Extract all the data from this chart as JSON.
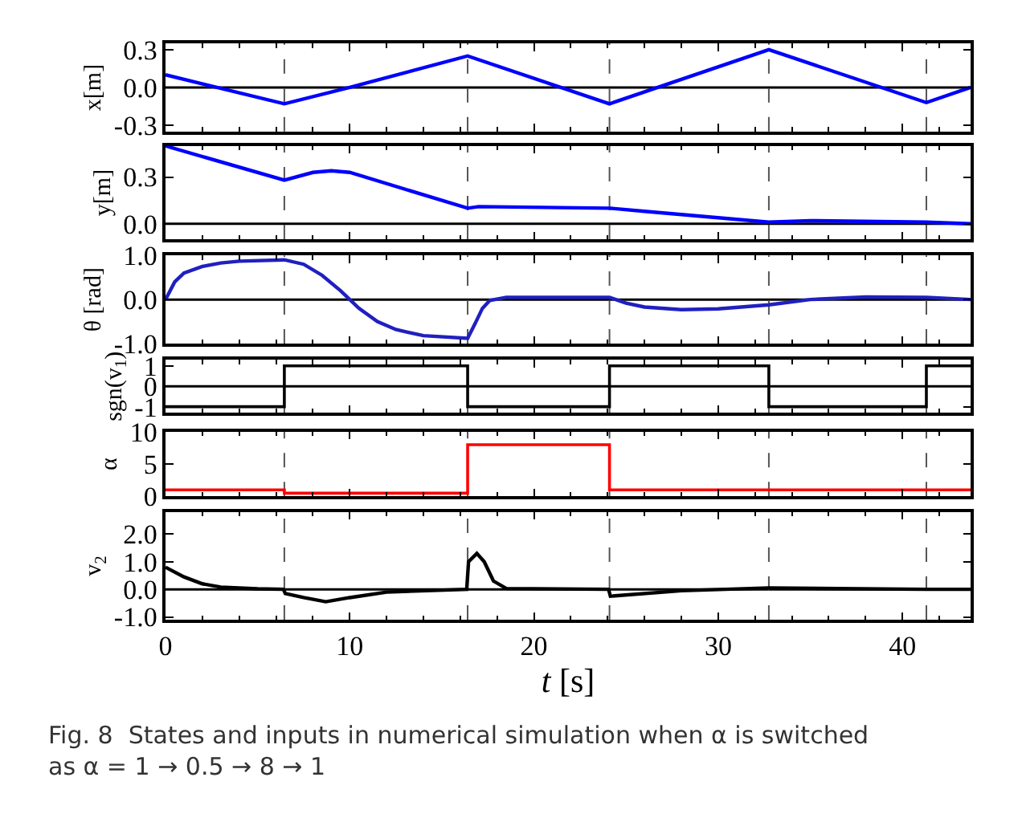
{
  "chart_data": [
    {
      "type": "line",
      "ylabel": "x[m]",
      "xlim": [
        0,
        43.7
      ],
      "xticks": [
        0,
        10,
        20,
        30,
        40
      ],
      "ylim": [
        -0.35,
        0.35
      ],
      "yticks": [
        -0.3,
        {
          "value": 0,
          "label": "0.0"
        },
        0.3
      ],
      "tick_labels": "y",
      "marker": "none",
      "x": [
        0,
        6.45,
        10,
        16.4,
        24.1,
        32.75,
        41.3,
        43.7
      ],
      "series": [
        {
          "color": "#0000ff",
          "values": [
            0.1,
            -0.13,
            0.0,
            0.25,
            -0.13,
            0.3,
            -0.12,
            0.0
          ]
        }
      ],
      "ref_lines": [
        {
          "axis": "y",
          "value": 0,
          "color": "#000000",
          "line_style": "solid"
        },
        {
          "axis": "x",
          "value": 6.45,
          "color": "#555555",
          "line_style": "dashed"
        },
        {
          "axis": "x",
          "value": 16.4,
          "color": "#555555",
          "line_style": "dashed"
        },
        {
          "axis": "x",
          "value": 24.1,
          "color": "#555555",
          "line_style": "dashed"
        },
        {
          "axis": "x",
          "value": 32.75,
          "color": "#555555",
          "line_style": "dashed"
        },
        {
          "axis": "x",
          "value": 41.3,
          "color": "#555555",
          "line_style": "dashed"
        }
      ]
    },
    {
      "type": "line",
      "ylabel": "y[m]",
      "xlim": [
        0,
        43.7
      ],
      "xticks": [
        0,
        10,
        20,
        30,
        40
      ],
      "ylim": [
        -0.1,
        0.5
      ],
      "yticks": [
        {
          "value": 0,
          "label": "0.0"
        },
        0.3
      ],
      "tick_labels": "y",
      "marker": "none",
      "x": [
        0,
        6.45,
        8,
        9,
        10,
        16.4,
        17,
        24.1,
        26,
        32.75,
        35,
        41.3,
        43.7
      ],
      "series": [
        {
          "color": "#0000ff",
          "values": [
            0.5,
            0.28,
            0.33,
            0.34,
            0.33,
            0.1,
            0.11,
            0.1,
            0.08,
            0.01,
            0.02,
            0.01,
            0.0
          ]
        }
      ],
      "ref_lines": [
        {
          "axis": "y",
          "value": 0,
          "color": "#000000",
          "line_style": "solid"
        },
        {
          "axis": "x",
          "value": 6.45,
          "color": "#555555",
          "line_style": "dashed"
        },
        {
          "axis": "x",
          "value": 16.4,
          "color": "#555555",
          "line_style": "dashed"
        },
        {
          "axis": "x",
          "value": 24.1,
          "color": "#555555",
          "line_style": "dashed"
        },
        {
          "axis": "x",
          "value": 32.75,
          "color": "#555555",
          "line_style": "dashed"
        },
        {
          "axis": "x",
          "value": 41.3,
          "color": "#555555",
          "line_style": "dashed"
        }
      ]
    },
    {
      "type": "line",
      "ylabel": "θ [rad]",
      "xlim": [
        0,
        43.7
      ],
      "xticks": [
        0,
        10,
        20,
        30,
        40
      ],
      "ylim": [
        -1.0,
        1.0
      ],
      "yticks": [
        {
          "value": -1,
          "label": "-1.0"
        },
        {
          "value": 0,
          "label": "0.0"
        },
        {
          "value": 1,
          "label": "1.0"
        }
      ],
      "tick_labels": "y",
      "marker": "none",
      "x": [
        0,
        0.5,
        1,
        2,
        3,
        4,
        6.45,
        7.5,
        8.5,
        9.5,
        10.5,
        11.5,
        12.5,
        14,
        16.4,
        16.8,
        17.2,
        17.6,
        18.5,
        24.1,
        25,
        26,
        28,
        30,
        32.75,
        35,
        38,
        41.3,
        43.7
      ],
      "series": [
        {
          "color": "#2020c0",
          "values": [
            0.0,
            0.4,
            0.6,
            0.75,
            0.83,
            0.87,
            0.9,
            0.8,
            0.55,
            0.2,
            -0.2,
            -0.5,
            -0.68,
            -0.82,
            -0.88,
            -0.55,
            -0.2,
            -0.02,
            0.05,
            0.05,
            -0.08,
            -0.17,
            -0.23,
            -0.21,
            -0.12,
            0.0,
            0.06,
            0.05,
            0.0
          ]
        }
      ],
      "ref_lines": [
        {
          "axis": "y",
          "value": 0,
          "color": "#000000",
          "line_style": "solid"
        },
        {
          "axis": "x",
          "value": 6.45,
          "color": "#555555",
          "line_style": "dashed"
        },
        {
          "axis": "x",
          "value": 16.4,
          "color": "#555555",
          "line_style": "dashed"
        },
        {
          "axis": "x",
          "value": 24.1,
          "color": "#555555",
          "line_style": "dashed"
        },
        {
          "axis": "x",
          "value": 32.75,
          "color": "#555555",
          "line_style": "dashed"
        },
        {
          "axis": "x",
          "value": 41.3,
          "color": "#555555",
          "line_style": "dashed"
        }
      ]
    },
    {
      "type": "step",
      "ylabel": "sgn(v$_{1}$)",
      "xlim": [
        0,
        43.7
      ],
      "xticks": [
        0,
        10,
        20,
        30,
        40
      ],
      "ylim": [
        -1.3,
        1.3
      ],
      "yticks": [
        -1,
        0,
        1
      ],
      "tick_labels": "y",
      "marker": "none",
      "x": [
        0,
        6.45,
        16.4,
        24.1,
        32.75,
        41.3,
        43.7
      ],
      "series": [
        {
          "color": "#000000",
          "values": [
            -1,
            1,
            -1,
            1,
            -1,
            1,
            1
          ]
        }
      ],
      "ref_lines": [
        {
          "axis": "y",
          "value": 0,
          "color": "#000000",
          "line_style": "solid"
        },
        {
          "axis": "x",
          "value": 6.45,
          "color": "#555555",
          "line_style": "dashed"
        },
        {
          "axis": "x",
          "value": 16.4,
          "color": "#555555",
          "line_style": "dashed"
        },
        {
          "axis": "x",
          "value": 24.1,
          "color": "#555555",
          "line_style": "dashed"
        },
        {
          "axis": "x",
          "value": 32.75,
          "color": "#555555",
          "line_style": "dashed"
        },
        {
          "axis": "x",
          "value": 41.3,
          "color": "#555555",
          "line_style": "dashed"
        }
      ]
    },
    {
      "type": "step",
      "ylabel": "α",
      "xlim": [
        0,
        43.7
      ],
      "xticks": [
        0,
        10,
        20,
        30,
        40
      ],
      "ylim": [
        0,
        10
      ],
      "yticks": [
        0,
        5,
        10
      ],
      "tick_labels": "y",
      "marker": "none",
      "x": [
        0,
        6.45,
        16.4,
        24.1,
        43.7
      ],
      "series": [
        {
          "color": "#ff0000",
          "values": [
            1,
            0.5,
            8,
            1,
            1
          ]
        }
      ],
      "ref_lines": [
        {
          "axis": "x",
          "value": 6.45,
          "color": "#555555",
          "line_style": "dashed"
        },
        {
          "axis": "x",
          "value": 16.4,
          "color": "#555555",
          "line_style": "dashed"
        },
        {
          "axis": "x",
          "value": 24.1,
          "color": "#555555",
          "line_style": "dashed"
        },
        {
          "axis": "x",
          "value": 32.75,
          "color": "#555555",
          "line_style": "dashed"
        },
        {
          "axis": "x",
          "value": 41.3,
          "color": "#555555",
          "line_style": "dashed"
        }
      ]
    },
    {
      "type": "line",
      "ylabel": "v$_{2}$",
      "xlabel": "t [s]",
      "xlim": [
        0,
        43.7
      ],
      "xticks": [
        0,
        10,
        20,
        30,
        40
      ],
      "ylim": [
        -1.1,
        2.8
      ],
      "yticks": [
        {
          "value": -1,
          "label": "-1.0"
        },
        {
          "value": 0,
          "label": "0.0"
        },
        {
          "value": 1,
          "label": "1.0"
        },
        {
          "value": 2,
          "label": "2.0"
        }
      ],
      "marker": "none",
      "x": [
        0,
        1,
        2,
        3,
        5,
        6.4,
        6.5,
        7.5,
        8.7,
        10,
        12,
        16.35,
        16.45,
        16.9,
        17.3,
        17.8,
        18.5,
        24.05,
        24.15,
        28,
        32.75,
        41.3,
        43.7
      ],
      "series": [
        {
          "color": "#000000",
          "values": [
            0.8,
            0.45,
            0.2,
            0.08,
            0.02,
            0.0,
            -0.15,
            -0.3,
            -0.45,
            -0.3,
            -0.1,
            0.0,
            1.0,
            1.3,
            1.0,
            0.3,
            0.03,
            0.0,
            -0.25,
            -0.05,
            0.05,
            0.0,
            0.0
          ]
        }
      ],
      "ref_lines": [
        {
          "axis": "y",
          "value": 0,
          "color": "#000000",
          "line_style": "solid"
        },
        {
          "axis": "x",
          "value": 6.45,
          "color": "#555555",
          "line_style": "dashed"
        },
        {
          "axis": "x",
          "value": 16.4,
          "color": "#555555",
          "line_style": "dashed"
        },
        {
          "axis": "x",
          "value": 24.1,
          "color": "#555555",
          "line_style": "dashed"
        },
        {
          "axis": "x",
          "value": 32.75,
          "color": "#555555",
          "line_style": "dashed"
        },
        {
          "axis": "x",
          "value": 41.3,
          "color": "#555555",
          "line_style": "dashed"
        }
      ],
      "annotations": [
        "Fig. 8  States and inputs in numerical simulation when α is switched as α = 1 → 0.5 → 8 → 1"
      ]
    }
  ]
}
